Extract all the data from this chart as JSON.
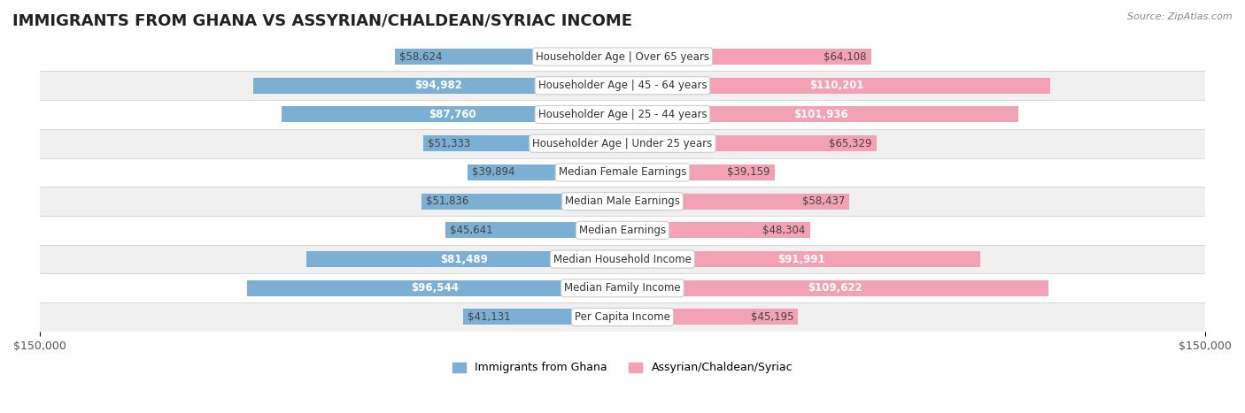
{
  "title": "IMMIGRANTS FROM GHANA VS ASSYRIAN/CHALDEAN/SYRIAC INCOME",
  "source": "Source: ZipAtlas.com",
  "categories": [
    "Per Capita Income",
    "Median Family Income",
    "Median Household Income",
    "Median Earnings",
    "Median Male Earnings",
    "Median Female Earnings",
    "Householder Age | Under 25 years",
    "Householder Age | 25 - 44 years",
    "Householder Age | 45 - 64 years",
    "Householder Age | Over 65 years"
  ],
  "ghana_values": [
    41131,
    96544,
    81489,
    45641,
    51836,
    39894,
    51333,
    87760,
    94982,
    58624
  ],
  "assyrian_values": [
    45195,
    109622,
    91991,
    48304,
    58437,
    39159,
    65329,
    101936,
    110201,
    64108
  ],
  "ghana_color": "#7bafd4",
  "ghana_color_dark": "#5b9dc8",
  "assyrian_color": "#f4a0b5",
  "assyrian_color_dark": "#e8728f",
  "max_value": 150000,
  "ghana_label": "Immigrants from Ghana",
  "assyrian_label": "Assyrian/Chaldean/Syriac",
  "bar_height": 0.55,
  "row_bg_color_odd": "#f0f0f0",
  "row_bg_color_even": "#ffffff",
  "label_fontsize": 8.5,
  "title_fontsize": 13,
  "value_threshold": 80000
}
